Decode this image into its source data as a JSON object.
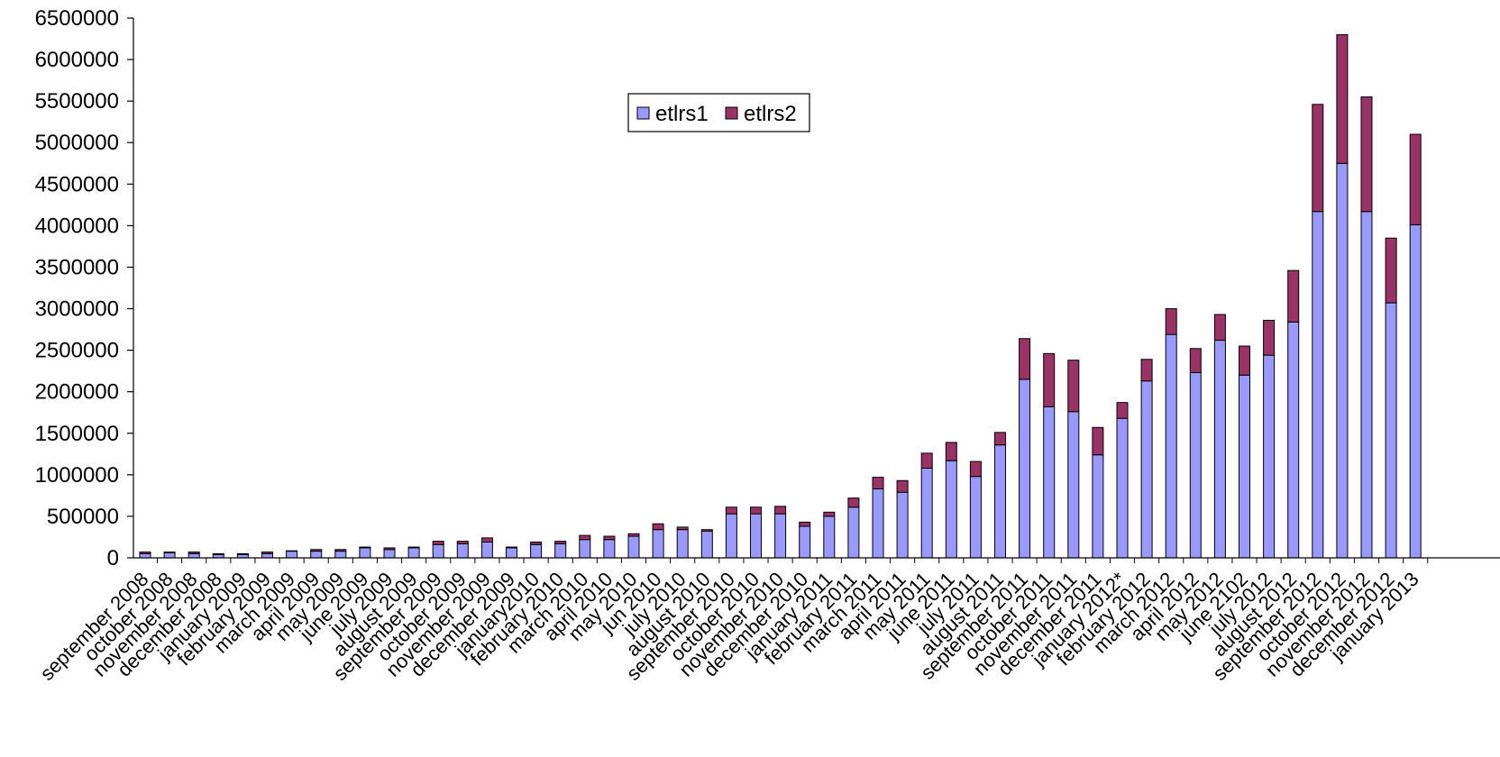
{
  "chart_data": {
    "type": "bar",
    "stacked": true,
    "title": "",
    "xlabel": "",
    "ylabel": "",
    "ylim": [
      0,
      6500000
    ],
    "yticks": [
      0,
      500000,
      1000000,
      1500000,
      2000000,
      2500000,
      3000000,
      3500000,
      4000000,
      4500000,
      5000000,
      5500000,
      6000000,
      6500000
    ],
    "ytick_labels": [
      "0",
      "500000",
      "1000000",
      "1500000",
      "2000000",
      "2500000",
      "3000000",
      "3500000",
      "4000000",
      "4500000",
      "5000000",
      "5500000",
      "6000000",
      "6500000"
    ],
    "grid": false,
    "legend_position": "top-center",
    "categories": [
      "september 2008",
      "october 2008",
      "november 2008",
      "december 2008",
      "january 2009",
      "february 2009",
      "march 2009",
      "april 2009",
      "may 2009",
      "june 2009",
      "july 2009",
      "august 2009",
      "september 2009",
      "october 2009",
      "november 2009",
      "december 2009",
      "january2010",
      "february 2010",
      "march 2010",
      "april 2010",
      "may 2010",
      "jun 2010",
      "july 2010",
      "august 2010",
      "september 2010",
      "october 2010",
      "november 2010",
      "december 2010",
      "january 2011",
      "february 2011",
      "march 2011",
      "april 2011",
      "may 2011",
      "june 2011",
      "july 2011",
      "august 2011",
      "september 2011",
      "october 2011",
      "november 2011",
      "december 2011",
      "january 2012*",
      "february 2012",
      "march 2012",
      "april 2012",
      "may 2012",
      "june 2102",
      "july 2012",
      "august 2012",
      "september 2012",
      "october 2012",
      "november 2012",
      "december 2012",
      "january 2013"
    ],
    "series": [
      {
        "name": "etlrs1",
        "color": "#9999ff",
        "values": [
          50000,
          60000,
          50000,
          40000,
          40000,
          50000,
          80000,
          80000,
          80000,
          120000,
          100000,
          120000,
          160000,
          170000,
          190000,
          120000,
          160000,
          170000,
          220000,
          220000,
          260000,
          340000,
          340000,
          320000,
          530000,
          530000,
          530000,
          380000,
          500000,
          610000,
          830000,
          790000,
          1080000,
          1170000,
          980000,
          1360000,
          2150000,
          1820000,
          1760000,
          1240000,
          1680000,
          2130000,
          2690000,
          2230000,
          2620000,
          2200000,
          2440000,
          2840000,
          4170000,
          4750000,
          4170000,
          3070000,
          4010000
        ]
      },
      {
        "name": "etlrs2",
        "color": "#993366",
        "values": [
          20000,
          10000,
          20000,
          10000,
          10000,
          20000,
          5000,
          20000,
          20000,
          10000,
          20000,
          10000,
          40000,
          30000,
          50000,
          10000,
          30000,
          30000,
          50000,
          40000,
          30000,
          70000,
          30000,
          20000,
          80000,
          80000,
          90000,
          50000,
          50000,
          110000,
          140000,
          140000,
          180000,
          220000,
          180000,
          150000,
          490000,
          640000,
          620000,
          330000,
          190000,
          260000,
          310000,
          290000,
          310000,
          350000,
          420000,
          620000,
          1290000,
          1550000,
          1380000,
          780000,
          1090000
        ]
      }
    ]
  }
}
